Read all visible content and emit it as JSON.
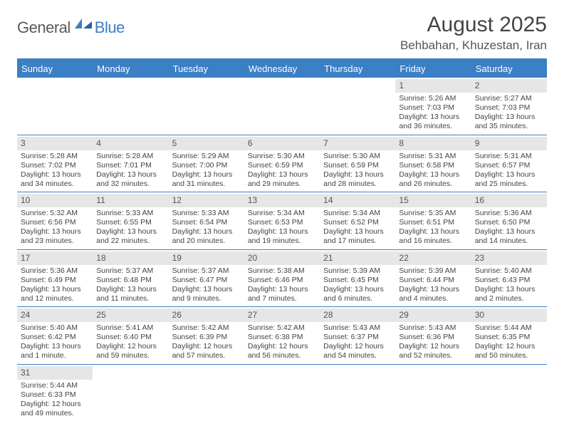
{
  "logo": {
    "text1": "General",
    "text2": "Blue"
  },
  "title": "August 2025",
  "location": "Behbahan, Khuzestan, Iran",
  "colors": {
    "header_bg": "#3b7fc4",
    "daynum_bg": "#e6e6e6",
    "text": "#444444"
  },
  "weekdays": [
    "Sunday",
    "Monday",
    "Tuesday",
    "Wednesday",
    "Thursday",
    "Friday",
    "Saturday"
  ],
  "weeks": [
    [
      null,
      null,
      null,
      null,
      null,
      {
        "n": "1",
        "sr": "5:26 AM",
        "ss": "7:03 PM",
        "dl": "13 hours and 36 minutes."
      },
      {
        "n": "2",
        "sr": "5:27 AM",
        "ss": "7:03 PM",
        "dl": "13 hours and 35 minutes."
      }
    ],
    [
      {
        "n": "3",
        "sr": "5:28 AM",
        "ss": "7:02 PM",
        "dl": "13 hours and 34 minutes."
      },
      {
        "n": "4",
        "sr": "5:28 AM",
        "ss": "7:01 PM",
        "dl": "13 hours and 32 minutes."
      },
      {
        "n": "5",
        "sr": "5:29 AM",
        "ss": "7:00 PM",
        "dl": "13 hours and 31 minutes."
      },
      {
        "n": "6",
        "sr": "5:30 AM",
        "ss": "6:59 PM",
        "dl": "13 hours and 29 minutes."
      },
      {
        "n": "7",
        "sr": "5:30 AM",
        "ss": "6:59 PM",
        "dl": "13 hours and 28 minutes."
      },
      {
        "n": "8",
        "sr": "5:31 AM",
        "ss": "6:58 PM",
        "dl": "13 hours and 26 minutes."
      },
      {
        "n": "9",
        "sr": "5:31 AM",
        "ss": "6:57 PM",
        "dl": "13 hours and 25 minutes."
      }
    ],
    [
      {
        "n": "10",
        "sr": "5:32 AM",
        "ss": "6:56 PM",
        "dl": "13 hours and 23 minutes."
      },
      {
        "n": "11",
        "sr": "5:33 AM",
        "ss": "6:55 PM",
        "dl": "13 hours and 22 minutes."
      },
      {
        "n": "12",
        "sr": "5:33 AM",
        "ss": "6:54 PM",
        "dl": "13 hours and 20 minutes."
      },
      {
        "n": "13",
        "sr": "5:34 AM",
        "ss": "6:53 PM",
        "dl": "13 hours and 19 minutes."
      },
      {
        "n": "14",
        "sr": "5:34 AM",
        "ss": "6:52 PM",
        "dl": "13 hours and 17 minutes."
      },
      {
        "n": "15",
        "sr": "5:35 AM",
        "ss": "6:51 PM",
        "dl": "13 hours and 16 minutes."
      },
      {
        "n": "16",
        "sr": "5:36 AM",
        "ss": "6:50 PM",
        "dl": "13 hours and 14 minutes."
      }
    ],
    [
      {
        "n": "17",
        "sr": "5:36 AM",
        "ss": "6:49 PM",
        "dl": "13 hours and 12 minutes."
      },
      {
        "n": "18",
        "sr": "5:37 AM",
        "ss": "6:48 PM",
        "dl": "13 hours and 11 minutes."
      },
      {
        "n": "19",
        "sr": "5:37 AM",
        "ss": "6:47 PM",
        "dl": "13 hours and 9 minutes."
      },
      {
        "n": "20",
        "sr": "5:38 AM",
        "ss": "6:46 PM",
        "dl": "13 hours and 7 minutes."
      },
      {
        "n": "21",
        "sr": "5:39 AM",
        "ss": "6:45 PM",
        "dl": "13 hours and 6 minutes."
      },
      {
        "n": "22",
        "sr": "5:39 AM",
        "ss": "6:44 PM",
        "dl": "13 hours and 4 minutes."
      },
      {
        "n": "23",
        "sr": "5:40 AM",
        "ss": "6:43 PM",
        "dl": "13 hours and 2 minutes."
      }
    ],
    [
      {
        "n": "24",
        "sr": "5:40 AM",
        "ss": "6:42 PM",
        "dl": "13 hours and 1 minute."
      },
      {
        "n": "25",
        "sr": "5:41 AM",
        "ss": "6:40 PM",
        "dl": "12 hours and 59 minutes."
      },
      {
        "n": "26",
        "sr": "5:42 AM",
        "ss": "6:39 PM",
        "dl": "12 hours and 57 minutes."
      },
      {
        "n": "27",
        "sr": "5:42 AM",
        "ss": "6:38 PM",
        "dl": "12 hours and 56 minutes."
      },
      {
        "n": "28",
        "sr": "5:43 AM",
        "ss": "6:37 PM",
        "dl": "12 hours and 54 minutes."
      },
      {
        "n": "29",
        "sr": "5:43 AM",
        "ss": "6:36 PM",
        "dl": "12 hours and 52 minutes."
      },
      {
        "n": "30",
        "sr": "5:44 AM",
        "ss": "6:35 PM",
        "dl": "12 hours and 50 minutes."
      }
    ],
    [
      {
        "n": "31",
        "sr": "5:44 AM",
        "ss": "6:33 PM",
        "dl": "12 hours and 49 minutes."
      },
      null,
      null,
      null,
      null,
      null,
      null
    ]
  ],
  "labels": {
    "sunrise": "Sunrise: ",
    "sunset": "Sunset: ",
    "daylight": "Daylight: "
  }
}
